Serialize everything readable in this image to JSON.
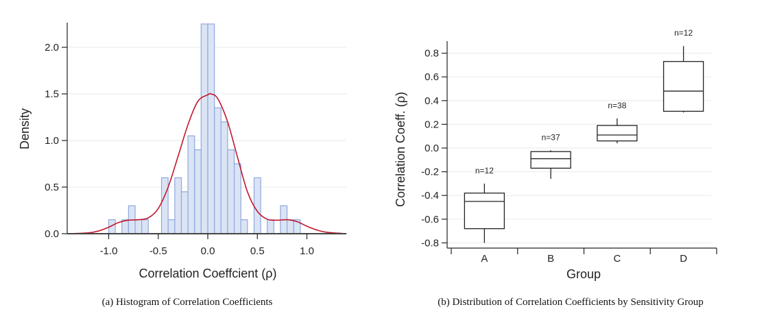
{
  "chart_data": [
    {
      "id": "a",
      "type": "bar",
      "subtype": "histogram-with-kde",
      "caption": "(a) Histogram of Correlation Coefficients",
      "xlabel": "Correlation Coeffcient (ρ)",
      "ylabel": "Density",
      "xlim": [
        -1.4,
        1.4
      ],
      "ylim": [
        0,
        2.3
      ],
      "xticks": [
        -1.0,
        -0.5,
        0.0,
        0.5,
        1.0
      ],
      "xtick_labels": [
        "-1.0",
        "-0.5",
        "0.0",
        "0.5",
        "1.0"
      ],
      "yticks": [
        0.0,
        0.5,
        1.0,
        1.5,
        2.0
      ],
      "ytick_labels": [
        "0.0",
        "0.5",
        "1.0",
        "1.5",
        "2.0"
      ],
      "grid": true,
      "bin_width": 0.0667,
      "bins": [
        {
          "x0": -1.0,
          "density": 0.15
        },
        {
          "x0": -0.933,
          "density": 0.0
        },
        {
          "x0": -0.867,
          "density": 0.15
        },
        {
          "x0": -0.8,
          "density": 0.3
        },
        {
          "x0": -0.733,
          "density": 0.15
        },
        {
          "x0": -0.667,
          "density": 0.15
        },
        {
          "x0": -0.6,
          "density": 0.0
        },
        {
          "x0": -0.533,
          "density": 0.0
        },
        {
          "x0": -0.467,
          "density": 0.6
        },
        {
          "x0": -0.4,
          "density": 0.15
        },
        {
          "x0": -0.333,
          "density": 0.6
        },
        {
          "x0": -0.267,
          "density": 0.45
        },
        {
          "x0": -0.2,
          "density": 1.05
        },
        {
          "x0": -0.133,
          "density": 0.9
        },
        {
          "x0": -0.067,
          "density": 2.25
        },
        {
          "x0": 0.0,
          "density": 2.25
        },
        {
          "x0": 0.067,
          "density": 1.35
        },
        {
          "x0": 0.133,
          "density": 1.2
        },
        {
          "x0": 0.2,
          "density": 0.9
        },
        {
          "x0": 0.267,
          "density": 0.75
        },
        {
          "x0": 0.333,
          "density": 0.15
        },
        {
          "x0": 0.4,
          "density": 0.0
        },
        {
          "x0": 0.467,
          "density": 0.6
        },
        {
          "x0": 0.533,
          "density": 0.0
        },
        {
          "x0": 0.6,
          "density": 0.15
        },
        {
          "x0": 0.667,
          "density": 0.0
        },
        {
          "x0": 0.733,
          "density": 0.3
        },
        {
          "x0": 0.8,
          "density": 0.15
        },
        {
          "x0": 0.867,
          "density": 0.15
        }
      ],
      "kde": {
        "x": [
          -1.4,
          -1.2,
          -1.1,
          -1.0,
          -0.9,
          -0.8,
          -0.7,
          -0.6,
          -0.5,
          -0.4,
          -0.3,
          -0.2,
          -0.1,
          0.0,
          0.03,
          0.1,
          0.2,
          0.3,
          0.4,
          0.5,
          0.6,
          0.7,
          0.8,
          0.9,
          1.0,
          1.1,
          1.2,
          1.4
        ],
        "y": [
          0.0,
          0.01,
          0.03,
          0.07,
          0.12,
          0.145,
          0.15,
          0.17,
          0.27,
          0.5,
          0.83,
          1.17,
          1.42,
          1.49,
          1.5,
          1.45,
          1.2,
          0.82,
          0.45,
          0.24,
          0.155,
          0.145,
          0.15,
          0.13,
          0.08,
          0.04,
          0.015,
          0.0
        ]
      },
      "colors": {
        "bar_fill": "#dbe4f4",
        "bar_stroke": "#8fa8dc",
        "kde": "#c0172d",
        "grid": "#e6e9ee"
      }
    },
    {
      "id": "b",
      "type": "box",
      "caption": "(b) Distribution of Correlation Coefficients by Sensitivity Group",
      "xlabel": "Group",
      "ylabel": "Correlation Coeff. (ρ)",
      "ylim": [
        -0.82,
        0.9
      ],
      "yticks": [
        -0.8,
        -0.6,
        -0.4,
        -0.2,
        0.0,
        0.2,
        0.4,
        0.6,
        0.8
      ],
      "ytick_labels": [
        "-0.8",
        "-0.6",
        "-0.4",
        "-0.2",
        "0.0",
        "0.2",
        "0.4",
        "0.6",
        "0.8"
      ],
      "grid": true,
      "categories": [
        "A",
        "B",
        "C",
        "D"
      ],
      "boxes": [
        {
          "group": "A",
          "n_label": "n=12",
          "whisker_low": -0.8,
          "q1": -0.68,
          "median": -0.45,
          "q3": -0.38,
          "whisker_high": -0.3
        },
        {
          "group": "B",
          "n_label": "n=37",
          "whisker_low": -0.26,
          "q1": -0.17,
          "median": -0.09,
          "q3": -0.03,
          "whisker_high": -0.02
        },
        {
          "group": "C",
          "n_label": "n=38",
          "whisker_low": 0.04,
          "q1": 0.06,
          "median": 0.11,
          "q3": 0.19,
          "whisker_high": 0.25
        },
        {
          "group": "D",
          "n_label": "n=12",
          "whisker_low": 0.3,
          "q1": 0.31,
          "median": 0.48,
          "q3": 0.73,
          "whisker_high": 0.86
        }
      ],
      "colors": {
        "box_stroke": "#222222",
        "grid": "#e6e9ee"
      }
    }
  ]
}
